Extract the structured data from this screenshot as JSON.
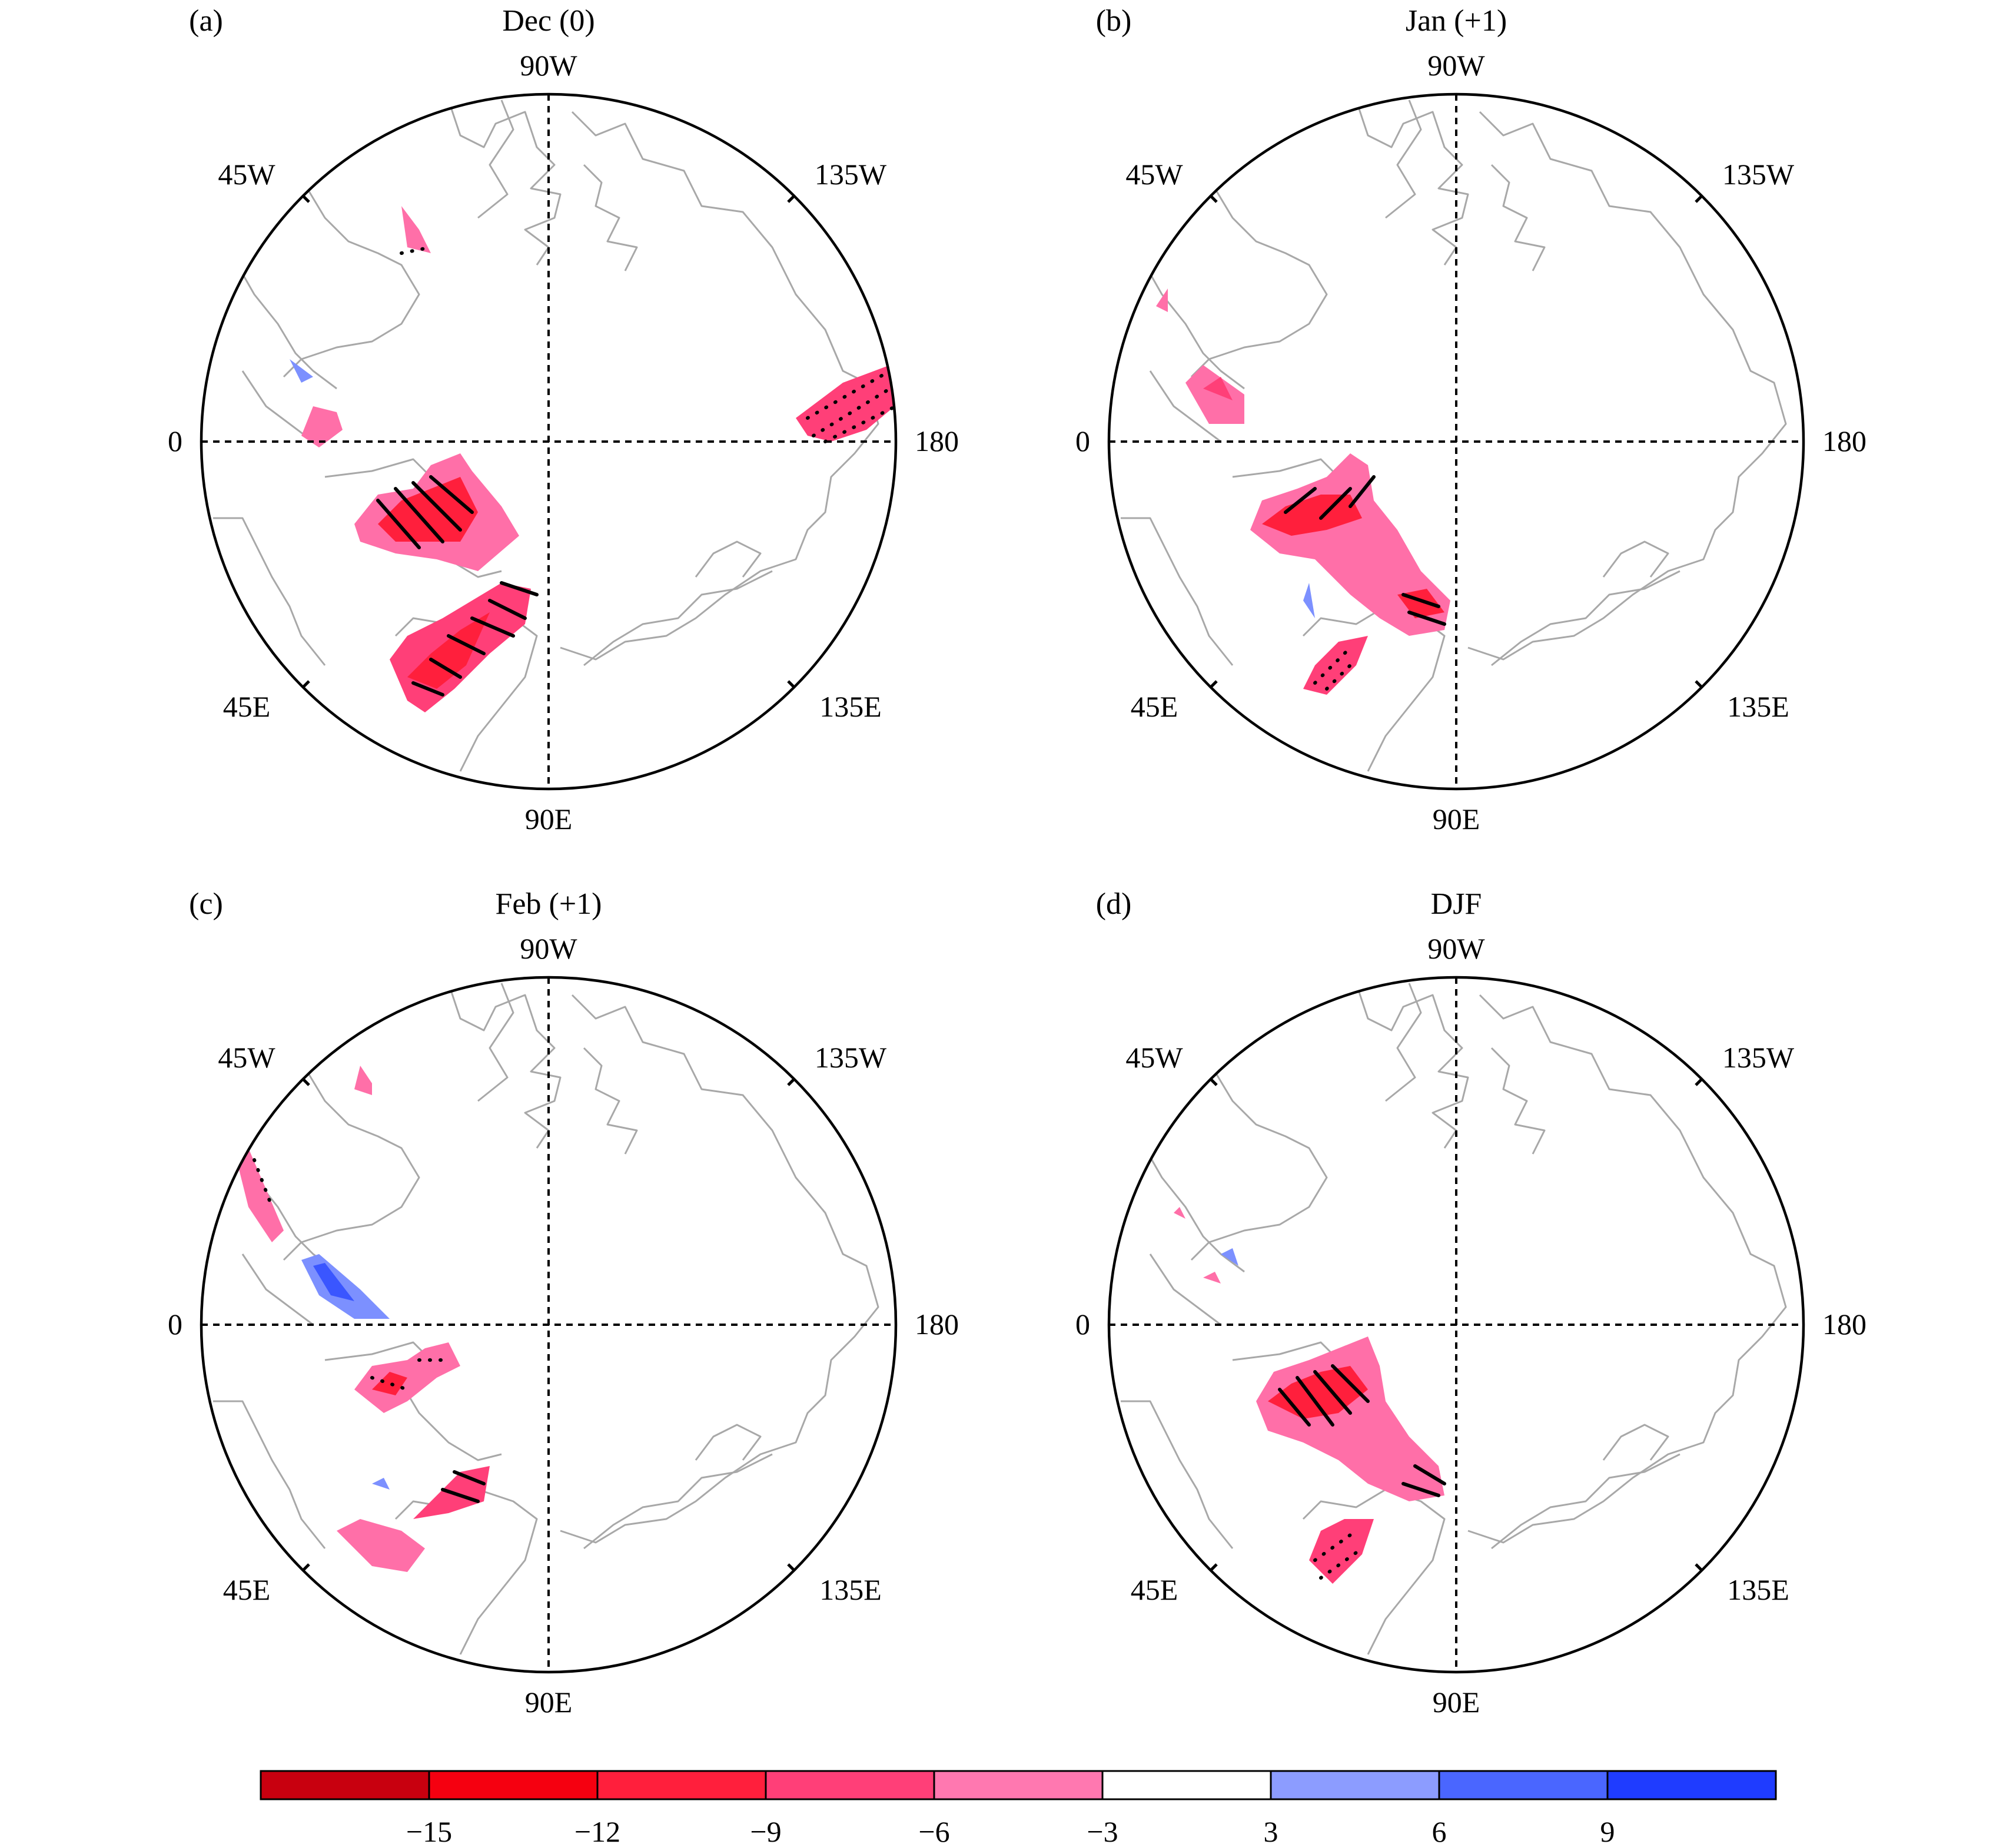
{
  "figure": {
    "panels": [
      {
        "letter": "(a)",
        "title": "Dec (0)"
      },
      {
        "letter": "(b)",
        "title": "Jan (+1)"
      },
      {
        "letter": "(c)",
        "title": "Feb (+1)"
      },
      {
        "letter": "(d)",
        "title": "DJF"
      }
    ],
    "longitude_labels": {
      "top": "90W",
      "upper_left": "45W",
      "upper_right": "135W",
      "left": "0",
      "right": "180",
      "lower_left": "45E",
      "lower_right": "135E",
      "bottom": "90E"
    },
    "colorbar": {
      "tick_labels": [
        "−15",
        "−12",
        "−9",
        "−6",
        "−3",
        "3",
        "6",
        "9"
      ],
      "colors": [
        "#c8000f",
        "#f50010",
        "#ff1f3c",
        "#ff3f78",
        "#ff78b0",
        "#ffffff",
        "#8c9cff",
        "#4a66ff",
        "#1f3cff"
      ]
    },
    "anomaly_colors": {
      "pink": "#ff6fa8",
      "rose": "#ff3f78",
      "red": "#ff1f3c",
      "blue": "#7c90ff",
      "darkblue": "#3a56ff"
    }
  }
}
